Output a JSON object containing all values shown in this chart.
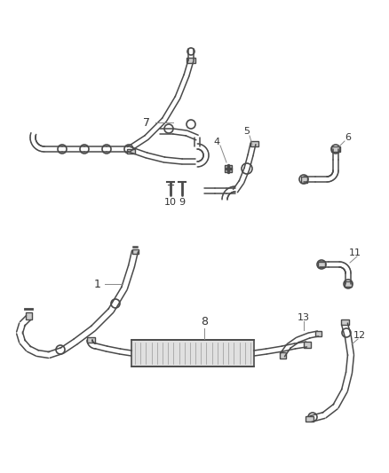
{
  "background_color": "#ffffff",
  "figsize": [
    4.38,
    5.33
  ],
  "dpi": 100,
  "line_color": "#4a4a4a",
  "label_color": "#333333",
  "leader_color": "#888888"
}
